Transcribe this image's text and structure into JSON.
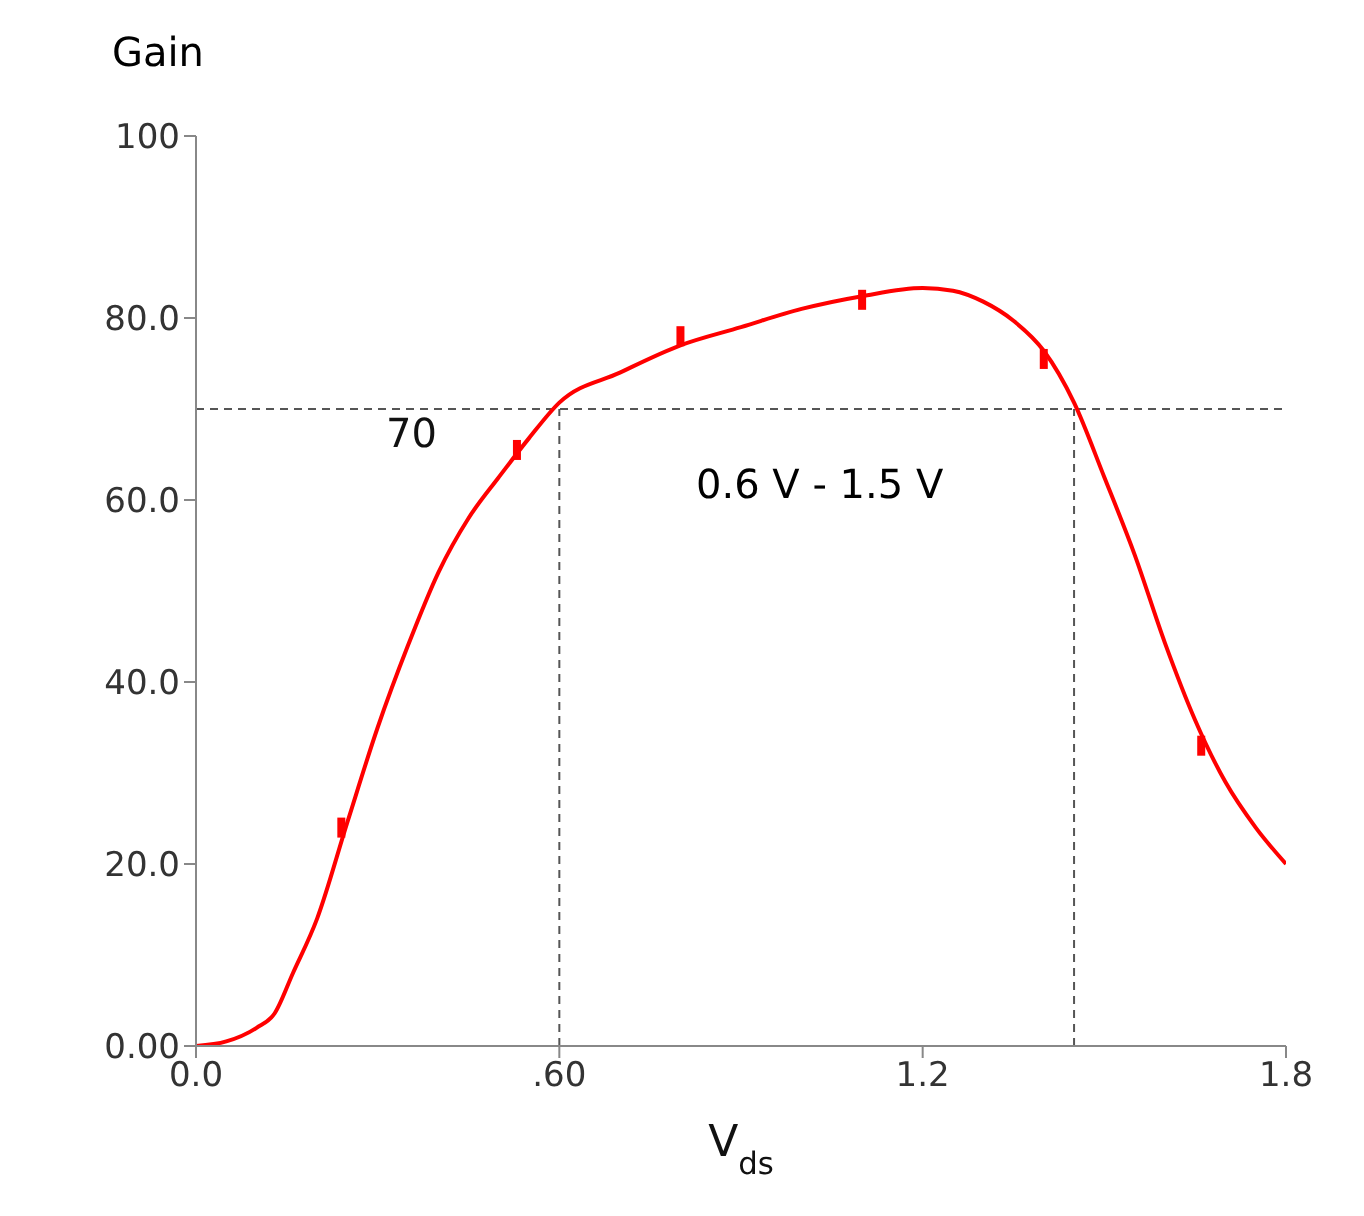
{
  "chart_data": {
    "type": "line",
    "ylabel": "Gain",
    "xlabel": "V$_{ds}$",
    "xlim": [
      0,
      1.8
    ],
    "ylim": [
      0,
      100
    ],
    "xticks": [
      {
        "value": 0,
        "label": "0.0"
      },
      {
        "value": 0.6,
        "label": ".60"
      },
      {
        "value": 1.2,
        "label": "1.2"
      },
      {
        "value": 1.8,
        "label": "1.8"
      }
    ],
    "yticks": [
      {
        "value": 0,
        "label": "0.00"
      },
      {
        "value": 20,
        "label": "20.0"
      },
      {
        "value": 40,
        "label": "40.0"
      },
      {
        "value": 60,
        "label": "60.0"
      },
      {
        "value": 80,
        "label": "80.0"
      },
      100
    ],
    "grid": false,
    "legend": false,
    "marker": "none",
    "line_style": "solid",
    "series": [
      {
        "type": "line",
        "color": "#ff0000",
        "x": [
          0,
          0.05,
          0.1,
          0.13,
          0.16,
          0.2,
          0.25,
          0.3,
          0.35,
          0.4,
          0.45,
          0.5,
          0.55,
          0.6,
          0.7,
          0.8,
          0.9,
          1.0,
          1.1,
          1.2,
          1.25,
          1.3,
          1.35,
          1.4,
          1.45,
          1.5,
          1.55,
          1.6,
          1.65,
          1.7,
          1.75,
          1.8
        ],
        "values": [
          0,
          0.5,
          2,
          3.6,
          8,
          14,
          24.6,
          35,
          44,
          52,
          58,
          62.5,
          66.8,
          70.7,
          74,
          77,
          79,
          81,
          82.4,
          83.3,
          83,
          81.8,
          79.7,
          76.4,
          70.7,
          62.5,
          54,
          44.3,
          35.8,
          29,
          24,
          20
        ]
      },
      {
        "type": "scatter",
        "marker": "square",
        "color": "#ff0000",
        "x": [
          0.24,
          0.53,
          0.8,
          1.1,
          1.4,
          1.66
        ],
        "values": [
          24,
          65.5,
          78,
          82,
          75.5,
          33
        ]
      }
    ],
    "ref_lines": [
      {
        "axis": "y",
        "value": 70,
        "label": "70",
        "color": "#555555",
        "line_style": "dashed"
      },
      {
        "axis": "x",
        "value": 0.6,
        "color": "#555555",
        "line_style": "dashed"
      },
      {
        "axis": "x",
        "value": 1.45,
        "color": "#555555",
        "line_style": "dashed"
      }
    ],
    "annotations": [
      "0.6 V - 1.5 V"
    ]
  }
}
